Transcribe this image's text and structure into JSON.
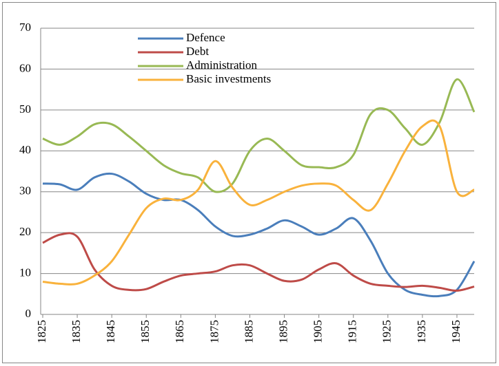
{
  "chart_data": {
    "type": "line",
    "x": [
      1825,
      1830,
      1835,
      1840,
      1845,
      1850,
      1855,
      1860,
      1865,
      1870,
      1875,
      1880,
      1885,
      1890,
      1895,
      1900,
      1905,
      1910,
      1915,
      1920,
      1925,
      1930,
      1935,
      1940,
      1945,
      1950
    ],
    "xlim": [
      1825,
      1950
    ],
    "xticks": [
      1825,
      1835,
      1845,
      1855,
      1865,
      1875,
      1885,
      1895,
      1905,
      1915,
      1925,
      1935,
      1945
    ],
    "ylim": [
      0,
      70
    ],
    "yticks": [
      0,
      10,
      20,
      30,
      40,
      50,
      60,
      70
    ],
    "grid": true,
    "legend": "top",
    "series": [
      {
        "name": "Defence",
        "color": "#4a7ebb",
        "values": [
          32,
          31.8,
          30.5,
          33.5,
          34.4,
          32.5,
          29.5,
          28,
          28,
          25.5,
          21.5,
          19.2,
          19.5,
          21,
          23,
          21.5,
          19.5,
          21,
          23.5,
          18,
          10,
          6,
          4.8,
          4.5,
          6,
          13
        ]
      },
      {
        "name": "Debt",
        "color": "#be4b48",
        "values": [
          17.5,
          19.5,
          19,
          11,
          7,
          6,
          6.2,
          8,
          9.5,
          10,
          10.5,
          12,
          12,
          10,
          8.2,
          8.5,
          11,
          12.5,
          9.5,
          7.5,
          7,
          6.7,
          7,
          6.5,
          5.8,
          6.8
        ]
      },
      {
        "name": "Administration",
        "color": "#98b954",
        "values": [
          43,
          41.5,
          43.5,
          46.5,
          46.5,
          43.5,
          40,
          36.5,
          34.5,
          33.5,
          30,
          32,
          40,
          43,
          40,
          36.5,
          36,
          36,
          39,
          49,
          50,
          45.5,
          41.5,
          47,
          57.5,
          49.5
        ]
      },
      {
        "name": "Basic investments",
        "color": "#f9b23c",
        "values": [
          8,
          7.5,
          7.5,
          9.5,
          13,
          19.5,
          26,
          28.3,
          28,
          30.5,
          37.5,
          31,
          26.8,
          28,
          30,
          31.5,
          32,
          31.5,
          28,
          25.5,
          32,
          40,
          46,
          46,
          30,
          30.5
        ]
      }
    ]
  }
}
